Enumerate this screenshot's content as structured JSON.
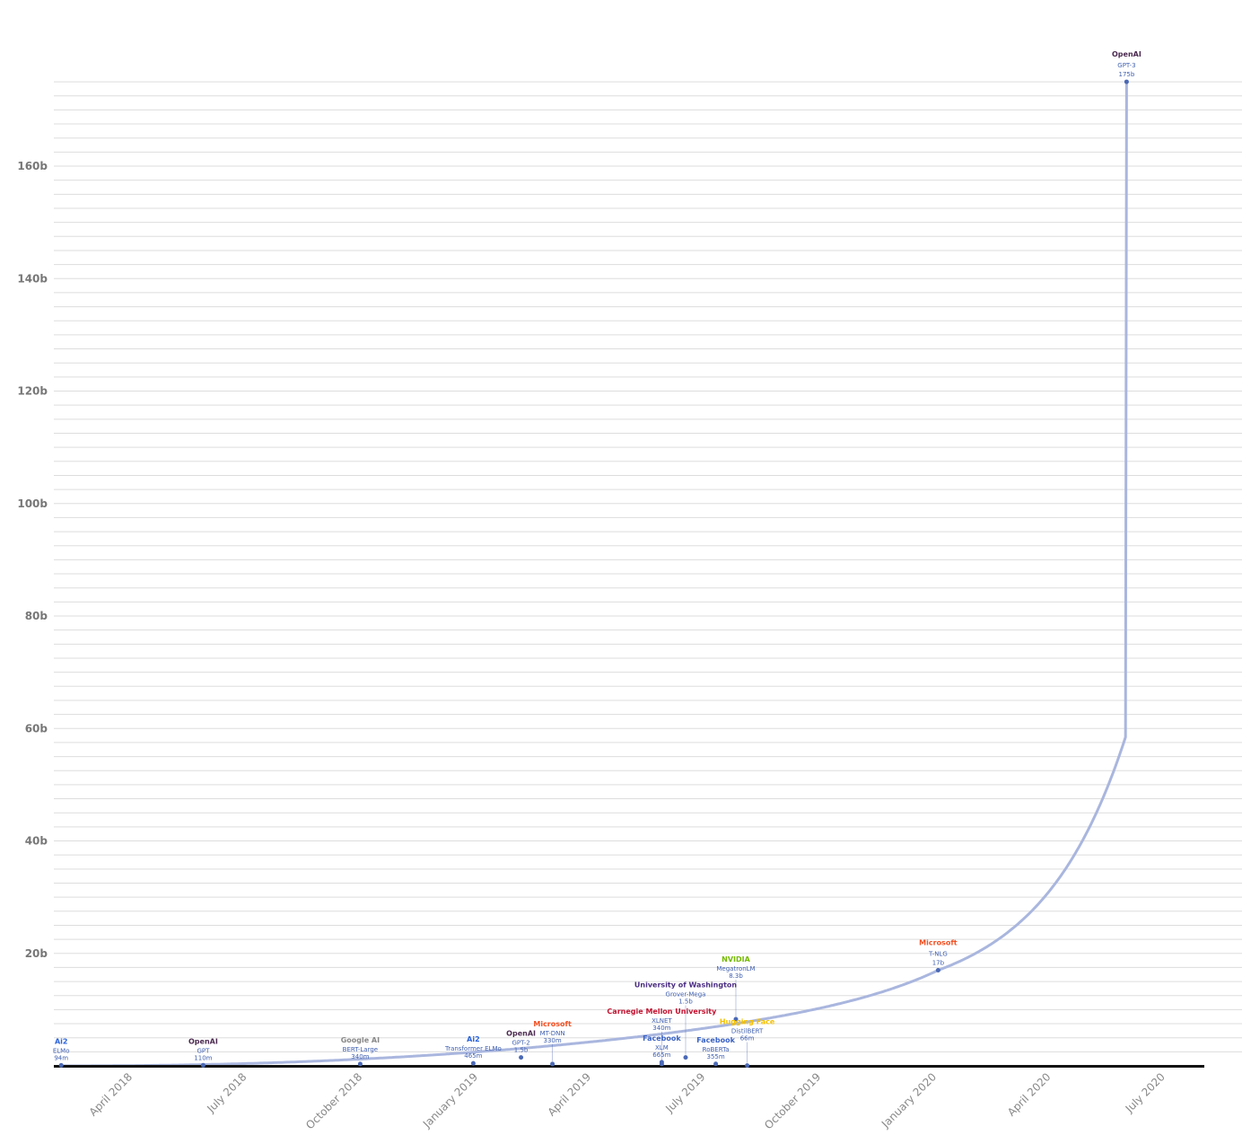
{
  "chart_data": {
    "type": "scatter",
    "title": "",
    "xlabel": "",
    "ylabel": "",
    "ylim": [
      0,
      175000000000
    ],
    "y_ticks": [
      "20b",
      "40b",
      "60b",
      "80b",
      "100b",
      "120b",
      "140b",
      "160b"
    ],
    "y_tick_values": [
      20000000000.0,
      40000000000.0,
      60000000000.0,
      80000000000.0,
      100000000000.0,
      120000000000.0,
      140000000000.0,
      160000000000.0
    ],
    "x_ticks": [
      "April 2018",
      "July 2018",
      "October 2018",
      "January 2019",
      "April 2019",
      "July 2019",
      "October 2019",
      "January 2020",
      "April 2020",
      "July 2020"
    ],
    "x_tick_dates": [
      "2018-04-01",
      "2018-07-01",
      "2018-10-01",
      "2019-01-01",
      "2019-04-01",
      "2019-07-01",
      "2019-10-01",
      "2020-01-01",
      "2020-04-01",
      "2020-07-01"
    ],
    "grid": true,
    "trend_line": true,
    "colors": {
      "line": "#a9b6de",
      "point": "#4a68b5",
      "label": "#3f5fb0",
      "grid": "#dddddd",
      "axis": "#111111"
    },
    "points": [
      {
        "model": "ELMo",
        "params_label": "94m",
        "params": 94000000.0,
        "date": "2018-02-03",
        "org": "Ai2",
        "org_color": "#2a62d9"
      },
      {
        "model": "GPT",
        "params_label": "110m",
        "params": 110000000.0,
        "date": "2018-05-27",
        "org": "OpenAI",
        "org_color": "#4b2a50"
      },
      {
        "model": "BERT-Large",
        "params_label": "340m",
        "params": 340000000.0,
        "date": "2018-09-29",
        "org": "Google AI",
        "org_color": "#888888"
      },
      {
        "model": "Transformer ELMo",
        "params_label": "465m",
        "params": 465000000.0,
        "date": "2018-12-28",
        "org": "Ai2",
        "org_color": "#2a62d9"
      },
      {
        "model": "GPT-2",
        "params_label": "1.5b",
        "params": 1500000000.0,
        "date": "2019-02-04",
        "org": "OpenAI",
        "org_color": "#4b2a50"
      },
      {
        "model": "MT-DNN",
        "params_label": "330m",
        "params": 330000000.0,
        "date": "2019-03-01",
        "org": "Microsoft",
        "org_color": "#f25022"
      },
      {
        "model": "XLM",
        "params_label": "665m",
        "params": 665000000.0,
        "date": "2019-05-27",
        "org": "Facebook",
        "org_color": "#3b63c4"
      },
      {
        "model": "XLNET",
        "params_label": "340m",
        "params": 340000000.0,
        "date": "2019-05-27",
        "org": "Carnegie Mellon University",
        "org_color": "#c41230"
      },
      {
        "model": "Grover-Mega",
        "params_label": "1.5b",
        "params": 1500000000.0,
        "date": "2019-06-15",
        "org": "University of Washington",
        "org_color": "#4b2e83"
      },
      {
        "model": "RoBERTa",
        "params_label": "355m",
        "params": 355000000.0,
        "date": "2019-07-09",
        "org": "Facebook",
        "org_color": "#3b63c4"
      },
      {
        "model": "MegatronLM",
        "params_label": "8.3b",
        "params": 8300000000.0,
        "date": "2019-07-25",
        "org": "NVIDIA",
        "org_color": "#76b900"
      },
      {
        "model": "DistilBERT",
        "params_label": "66m",
        "params": 66000000.0,
        "date": "2019-08-03",
        "org": "Hugging Face",
        "org_color": "#f5c000"
      },
      {
        "model": "T-NLG",
        "params_label": "17b",
        "params": 17000000000.0,
        "date": "2020-01-02",
        "org": "Microsoft",
        "org_color": "#f25022"
      },
      {
        "model": "GPT-3",
        "params_label": "175b",
        "params": 175000000000.0,
        "date": "2020-05-31",
        "org": "OpenAI",
        "org_color": "#4b2a50"
      }
    ]
  }
}
